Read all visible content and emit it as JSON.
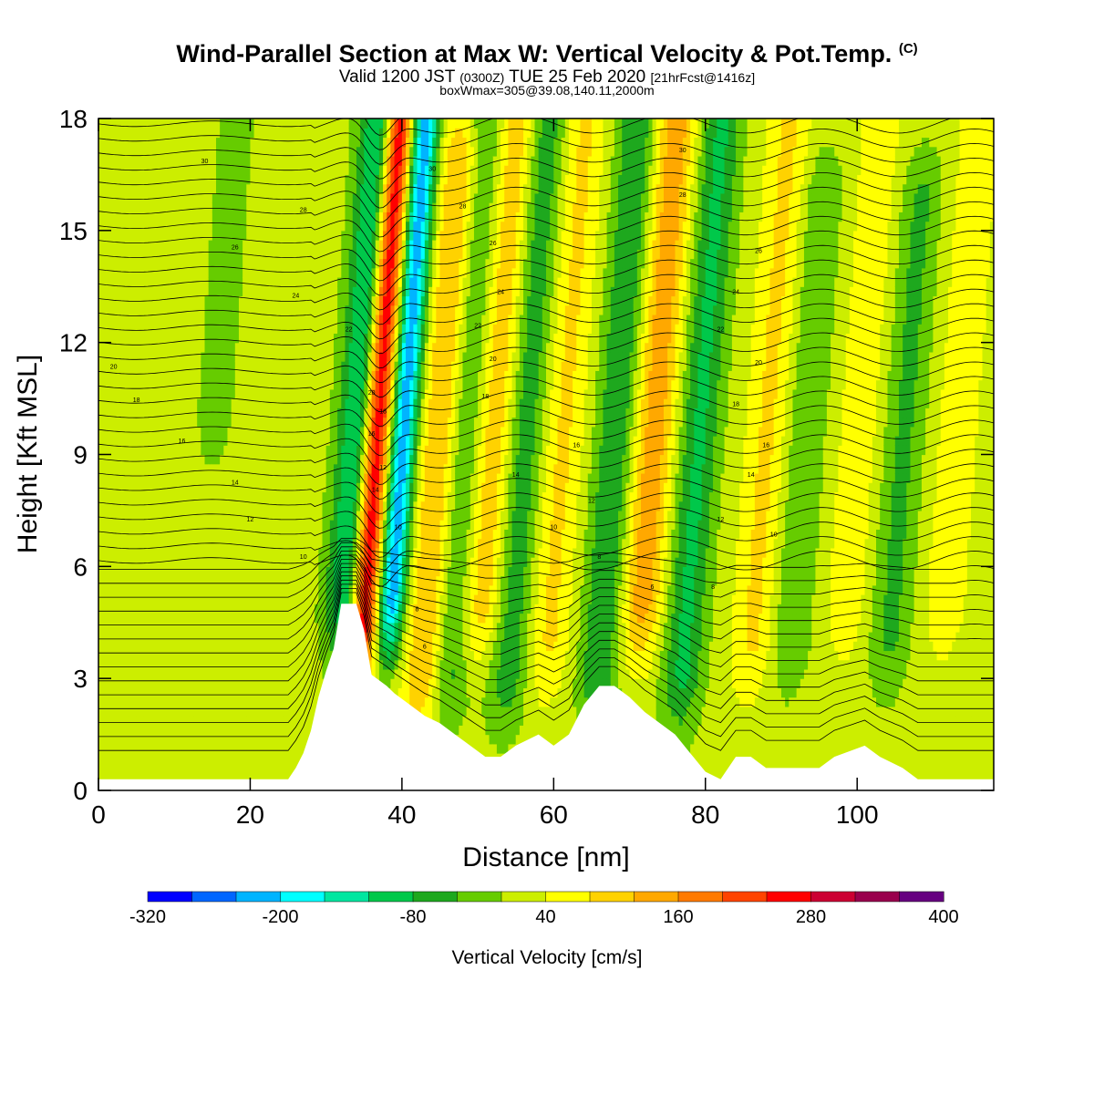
{
  "header": {
    "title": "Wind-Parallel Section at Max W: Vertical Velocity & Pot.Temp.",
    "title_mark": "(C)",
    "subtitle_a": "Valid 1200 JST",
    "subtitle_b": "(0300Z)",
    "subtitle_c": "TUE 25 Feb 2020",
    "subtitle_d": "[21hrFcst@1416z]",
    "subtitle2": "boxWmax=305@39.08,140.11,2000m"
  },
  "chart_data": {
    "type": "heatmap",
    "title": "Wind-Parallel Section at Max W: Vertical Velocity & Pot.Temp.",
    "xlabel": "Distance [nm]",
    "ylabel": "Height [Kft MSL]",
    "xlim": [
      0,
      118
    ],
    "ylim": [
      0,
      18
    ],
    "x_ticks": [
      "0",
      "20",
      "40",
      "60",
      "80",
      "100"
    ],
    "y_ticks": [
      "0",
      "3",
      "6",
      "9",
      "12",
      "15",
      "18"
    ],
    "colorbar": {
      "title": "Vertical Velocity [cm/s]",
      "labels": [
        "-320",
        "-200",
        "-80",
        "40",
        "160",
        "280",
        "400"
      ],
      "levels": [
        -320,
        -280,
        -240,
        -200,
        -160,
        -120,
        -80,
        -40,
        0,
        40,
        80,
        120,
        160,
        200,
        240,
        280,
        320,
        360,
        400
      ],
      "colors": [
        "#0000ff",
        "#0066ff",
        "#00b4ff",
        "#00ffff",
        "#00e6a0",
        "#00c84a",
        "#1ea81e",
        "#66cc00",
        "#ccee00",
        "#ffff00",
        "#ffd200",
        "#ffa800",
        "#ff7a00",
        "#ff4400",
        "#ff0000",
        "#cc0033",
        "#99004d",
        "#660080"
      ]
    },
    "background_w_cm_s": 20,
    "updraft_bands": [
      {
        "x": 36.5,
        "w_cm_s": 305,
        "top_kft": 18,
        "bottom_kft": 4.5
      },
      {
        "x": 45,
        "w_cm_s": 120,
        "top_kft": 17,
        "bottom_kft": 3
      },
      {
        "x": 52,
        "w_cm_s": 100,
        "top_kft": 18,
        "bottom_kft": 5
      },
      {
        "x": 61,
        "w_cm_s": 70,
        "top_kft": 18,
        "bottom_kft": 4
      },
      {
        "x": 73,
        "w_cm_s": 130,
        "top_kft": 18,
        "bottom_kft": 5
      },
      {
        "x": 88,
        "w_cm_s": 70,
        "top_kft": 18,
        "bottom_kft": 4
      },
      {
        "x": 100,
        "w_cm_s": 50,
        "top_kft": 18,
        "bottom_kft": 5
      },
      {
        "x": 113,
        "w_cm_s": 50,
        "top_kft": 18,
        "bottom_kft": 5
      }
    ],
    "downdraft_bands": [
      {
        "x": 40,
        "w_cm_s": -250,
        "top_kft": 18,
        "bottom_kft": 5
      },
      {
        "x": 34,
        "w_cm_s": -160,
        "top_kft": 18,
        "bottom_kft": 5
      },
      {
        "x": 48,
        "w_cm_s": -90,
        "top_kft": 18,
        "bottom_kft": 3
      },
      {
        "x": 56,
        "w_cm_s": -90,
        "top_kft": 18,
        "bottom_kft": 3
      },
      {
        "x": 68,
        "w_cm_s": -100,
        "top_kft": 18,
        "bottom_kft": 3
      },
      {
        "x": 79,
        "w_cm_s": -110,
        "top_kft": 18,
        "bottom_kft": 3
      },
      {
        "x": 93,
        "w_cm_s": -60,
        "top_kft": 16,
        "bottom_kft": 4
      },
      {
        "x": 106,
        "w_cm_s": -70,
        "top_kft": 16,
        "bottom_kft": 4
      },
      {
        "x": 15,
        "w_cm_s": -40,
        "top_kft": 18,
        "bottom_kft": 10
      }
    ],
    "terrain_kft": [
      [
        0,
        0.3
      ],
      [
        25,
        0.3
      ],
      [
        26,
        0.6
      ],
      [
        27,
        1.0
      ],
      [
        28,
        1.6
      ],
      [
        29,
        2.5
      ],
      [
        30,
        3.2
      ],
      [
        31,
        3.8
      ],
      [
        32,
        5.0
      ],
      [
        34,
        5.0
      ],
      [
        35,
        4.3
      ],
      [
        36,
        3.1
      ],
      [
        38,
        2.8
      ],
      [
        39,
        2.6
      ],
      [
        41,
        2.3
      ],
      [
        43,
        2.0
      ],
      [
        45,
        1.8
      ],
      [
        47,
        1.5
      ],
      [
        49,
        1.2
      ],
      [
        51,
        0.9
      ],
      [
        53,
        0.9
      ],
      [
        55,
        1.2
      ],
      [
        58,
        1.5
      ],
      [
        60,
        1.2
      ],
      [
        62,
        1.5
      ],
      [
        64,
        2.3
      ],
      [
        66,
        2.8
      ],
      [
        68,
        2.8
      ],
      [
        70,
        2.5
      ],
      [
        72,
        2.1
      ],
      [
        74,
        1.8
      ],
      [
        76,
        1.5
      ],
      [
        78,
        1.0
      ],
      [
        80,
        0.5
      ],
      [
        82,
        0.3
      ],
      [
        84,
        0.9
      ],
      [
        86,
        0.9
      ],
      [
        88,
        0.6
      ],
      [
        95,
        0.6
      ],
      [
        97,
        0.9
      ],
      [
        101,
        1.2
      ],
      [
        103,
        0.9
      ],
      [
        106,
        0.6
      ],
      [
        108,
        0.3
      ],
      [
        118,
        0.3
      ]
    ],
    "theta_contour_labels": [
      {
        "x": 14,
        "y": 16.8,
        "label": "30"
      },
      {
        "x": 27,
        "y": 15.5,
        "label": "28"
      },
      {
        "x": 18,
        "y": 14.5,
        "label": "26"
      },
      {
        "x": 26,
        "y": 13.2,
        "label": "24"
      },
      {
        "x": 33,
        "y": 12.3,
        "label": "22"
      },
      {
        "x": 2,
        "y": 11.3,
        "label": "20"
      },
      {
        "x": 5,
        "y": 10.4,
        "label": "18"
      },
      {
        "x": 11,
        "y": 9.3,
        "label": "16"
      },
      {
        "x": 18,
        "y": 8.2,
        "label": "14"
      },
      {
        "x": 20,
        "y": 7.2,
        "label": "12"
      },
      {
        "x": 27,
        "y": 6.2,
        "label": "10"
      },
      {
        "x": 44,
        "y": 16.6,
        "label": "30"
      },
      {
        "x": 48,
        "y": 15.6,
        "label": "28"
      },
      {
        "x": 52,
        "y": 14.6,
        "label": "26"
      },
      {
        "x": 53,
        "y": 13.3,
        "label": "24"
      },
      {
        "x": 50,
        "y": 12.4,
        "label": "22"
      },
      {
        "x": 52,
        "y": 11.5,
        "label": "20"
      },
      {
        "x": 51,
        "y": 10.5,
        "label": "18"
      },
      {
        "x": 36,
        "y": 10.6,
        "label": "20"
      },
      {
        "x": 37.5,
        "y": 10.1,
        "label": "18"
      },
      {
        "x": 36,
        "y": 9.5,
        "label": "16"
      },
      {
        "x": 37.5,
        "y": 8.6,
        "label": "12"
      },
      {
        "x": 36.5,
        "y": 8.0,
        "label": "14"
      },
      {
        "x": 39.5,
        "y": 7.0,
        "label": "10"
      },
      {
        "x": 42,
        "y": 4.8,
        "label": "8"
      },
      {
        "x": 43,
        "y": 3.8,
        "label": "6"
      },
      {
        "x": 63,
        "y": 9.2,
        "label": "16"
      },
      {
        "x": 55,
        "y": 8.4,
        "label": "14"
      },
      {
        "x": 65,
        "y": 7.7,
        "label": "12"
      },
      {
        "x": 60,
        "y": 7.0,
        "label": "10"
      },
      {
        "x": 66,
        "y": 6.2,
        "label": "8"
      },
      {
        "x": 73,
        "y": 5.4,
        "label": "6"
      },
      {
        "x": 77,
        "y": 17.1,
        "label": "30"
      },
      {
        "x": 77,
        "y": 15.9,
        "label": "28"
      },
      {
        "x": 87,
        "y": 14.4,
        "label": "26"
      },
      {
        "x": 84,
        "y": 13.3,
        "label": "24"
      },
      {
        "x": 82,
        "y": 12.3,
        "label": "22"
      },
      {
        "x": 87,
        "y": 11.4,
        "label": "20"
      },
      {
        "x": 84,
        "y": 10.3,
        "label": "18"
      },
      {
        "x": 88,
        "y": 9.2,
        "label": "16"
      },
      {
        "x": 86,
        "y": 8.4,
        "label": "14"
      },
      {
        "x": 82,
        "y": 7.2,
        "label": "12"
      },
      {
        "x": 89,
        "y": 6.8,
        "label": "10"
      },
      {
        "x": 81,
        "y": 5.4,
        "label": "8"
      }
    ]
  }
}
